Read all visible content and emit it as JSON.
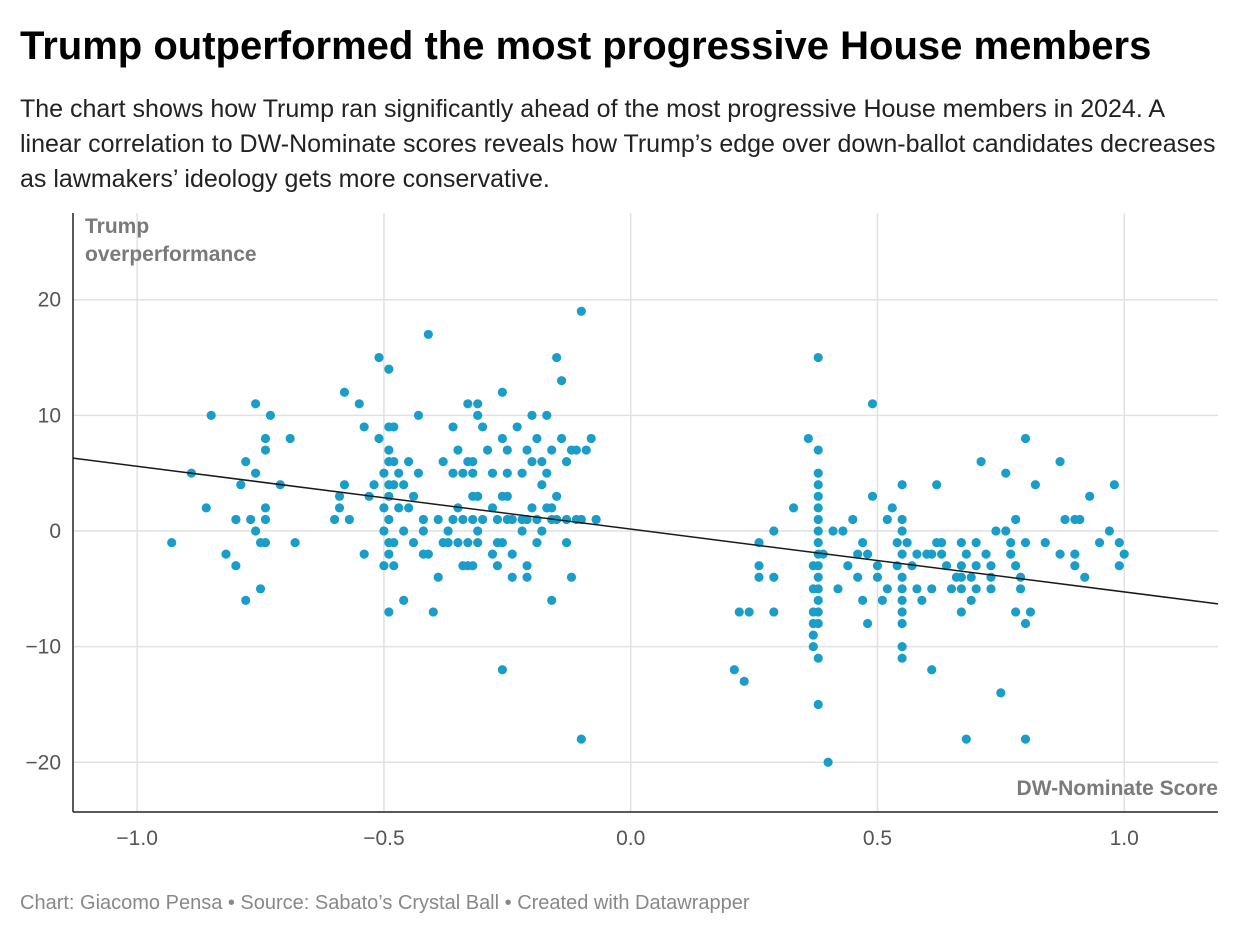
{
  "chart_data": {
    "type": "scatter",
    "title": "Trump outperformed the most progressive House members",
    "subtitle": "The chart shows how Trump ran significantly ahead of the most progressive House members in 2024. A linear correlation to DW-Nominate scores reveals how Trump’s edge over down-ballot candidates decreases as lawmakers’ ideology gets more conservative.",
    "xlabel": "DW-Nominate Score",
    "ylabel": "Trump overperformance",
    "ylabel_lines": [
      "Trump",
      "overperformance"
    ],
    "xlim": [
      -1.13,
      1.19
    ],
    "ylim": [
      -24.3,
      27.5
    ],
    "xticks": [
      {
        "value": -1.0,
        "label": "−1.0"
      },
      {
        "value": -0.5,
        "label": "−0.5"
      },
      {
        "value": 0.0,
        "label": "0.0"
      },
      {
        "value": 0.5,
        "label": "0.5"
      },
      {
        "value": 1.0,
        "label": "1.0"
      }
    ],
    "yticks": [
      {
        "value": 20,
        "label": "20"
      },
      {
        "value": 10,
        "label": "10"
      },
      {
        "value": 0,
        "label": "0"
      },
      {
        "value": -10,
        "label": "−10"
      },
      {
        "value": -20,
        "label": "−20"
      }
    ],
    "grid": true,
    "point_color": "#1a9ec9",
    "trendline": {
      "color": "#1a1a1a",
      "x": [
        -1.13,
        1.19
      ],
      "y": [
        6.3,
        -6.3
      ]
    },
    "points": [
      [
        -0.93,
        -1
      ],
      [
        -0.89,
        5
      ],
      [
        -0.86,
        2
      ],
      [
        -0.85,
        10
      ],
      [
        -0.82,
        -2
      ],
      [
        -0.8,
        -3
      ],
      [
        -0.8,
        1
      ],
      [
        -0.79,
        4
      ],
      [
        -0.78,
        6
      ],
      [
        -0.78,
        -6
      ],
      [
        -0.77,
        1
      ],
      [
        -0.76,
        0
      ],
      [
        -0.76,
        5
      ],
      [
        -0.76,
        11
      ],
      [
        -0.75,
        -5
      ],
      [
        -0.75,
        -1
      ],
      [
        -0.74,
        1
      ],
      [
        -0.74,
        2
      ],
      [
        -0.74,
        7
      ],
      [
        -0.74,
        8
      ],
      [
        -0.74,
        -1
      ],
      [
        -0.73,
        10
      ],
      [
        -0.71,
        4
      ],
      [
        -0.69,
        8
      ],
      [
        -0.68,
        -1
      ],
      [
        -0.6,
        1
      ],
      [
        -0.59,
        2
      ],
      [
        -0.59,
        3
      ],
      [
        -0.58,
        12
      ],
      [
        -0.58,
        4
      ],
      [
        -0.57,
        1
      ],
      [
        -0.55,
        11
      ],
      [
        -0.54,
        9
      ],
      [
        -0.54,
        -2
      ],
      [
        -0.53,
        3
      ],
      [
        -0.52,
        4
      ],
      [
        -0.51,
        8
      ],
      [
        -0.51,
        15
      ],
      [
        -0.5,
        5
      ],
      [
        -0.5,
        2
      ],
      [
        -0.5,
        0
      ],
      [
        -0.5,
        -3
      ],
      [
        -0.49,
        9
      ],
      [
        -0.49,
        7
      ],
      [
        -0.49,
        6
      ],
      [
        -0.49,
        4
      ],
      [
        -0.49,
        3
      ],
      [
        -0.49,
        1
      ],
      [
        -0.49,
        -1
      ],
      [
        -0.49,
        -2
      ],
      [
        -0.49,
        -7
      ],
      [
        -0.49,
        14
      ],
      [
        -0.48,
        9
      ],
      [
        -0.48,
        6
      ],
      [
        -0.48,
        4
      ],
      [
        -0.48,
        -1
      ],
      [
        -0.48,
        -3
      ],
      [
        -0.47,
        5
      ],
      [
        -0.47,
        2
      ],
      [
        -0.46,
        -6
      ],
      [
        -0.46,
        4
      ],
      [
        -0.46,
        0
      ],
      [
        -0.45,
        2
      ],
      [
        -0.45,
        6
      ],
      [
        -0.44,
        3
      ],
      [
        -0.44,
        -1
      ],
      [
        -0.43,
        10
      ],
      [
        -0.43,
        5
      ],
      [
        -0.42,
        -2
      ],
      [
        -0.42,
        0
      ],
      [
        -0.42,
        1
      ],
      [
        -0.41,
        17
      ],
      [
        -0.41,
        -2
      ],
      [
        -0.4,
        -7
      ],
      [
        -0.39,
        -4
      ],
      [
        -0.39,
        1
      ],
      [
        -0.38,
        6
      ],
      [
        -0.38,
        -1
      ],
      [
        -0.37,
        0
      ],
      [
        -0.37,
        -1
      ],
      [
        -0.36,
        9
      ],
      [
        -0.36,
        5
      ],
      [
        -0.36,
        1
      ],
      [
        -0.35,
        -1
      ],
      [
        -0.35,
        2
      ],
      [
        -0.35,
        7
      ],
      [
        -0.34,
        5
      ],
      [
        -0.34,
        1
      ],
      [
        -0.34,
        -3
      ],
      [
        -0.33,
        11
      ],
      [
        -0.33,
        6
      ],
      [
        -0.33,
        -1
      ],
      [
        -0.33,
        -3
      ],
      [
        -0.32,
        1
      ],
      [
        -0.32,
        5
      ],
      [
        -0.32,
        6
      ],
      [
        -0.32,
        3
      ],
      [
        -0.32,
        -3
      ],
      [
        -0.31,
        10
      ],
      [
        -0.31,
        11
      ],
      [
        -0.31,
        3
      ],
      [
        -0.31,
        0
      ],
      [
        -0.31,
        -1
      ],
      [
        -0.3,
        9
      ],
      [
        -0.3,
        1
      ],
      [
        -0.29,
        7
      ],
      [
        -0.28,
        2
      ],
      [
        -0.28,
        -2
      ],
      [
        -0.28,
        5
      ],
      [
        -0.27,
        -1
      ],
      [
        -0.27,
        -3
      ],
      [
        -0.27,
        1
      ],
      [
        -0.26,
        12
      ],
      [
        -0.26,
        8
      ],
      [
        -0.26,
        3
      ],
      [
        -0.26,
        -1
      ],
      [
        -0.26,
        -12
      ],
      [
        -0.25,
        7
      ],
      [
        -0.25,
        1
      ],
      [
        -0.25,
        5
      ],
      [
        -0.25,
        3
      ],
      [
        -0.24,
        -4
      ],
      [
        -0.24,
        1
      ],
      [
        -0.24,
        -2
      ],
      [
        -0.23,
        9
      ],
      [
        -0.22,
        1
      ],
      [
        -0.22,
        0
      ],
      [
        -0.22,
        5
      ],
      [
        -0.21,
        -3
      ],
      [
        -0.21,
        -4
      ],
      [
        -0.21,
        7
      ],
      [
        -0.21,
        1
      ],
      [
        -0.2,
        10
      ],
      [
        -0.2,
        6
      ],
      [
        -0.2,
        2
      ],
      [
        -0.19,
        8
      ],
      [
        -0.19,
        1
      ],
      [
        -0.19,
        -1
      ],
      [
        -0.18,
        4
      ],
      [
        -0.18,
        6
      ],
      [
        -0.18,
        0
      ],
      [
        -0.17,
        10
      ],
      [
        -0.17,
        2
      ],
      [
        -0.17,
        5
      ],
      [
        -0.16,
        -6
      ],
      [
        -0.16,
        1
      ],
      [
        -0.16,
        2
      ],
      [
        -0.16,
        7
      ],
      [
        -0.15,
        3
      ],
      [
        -0.15,
        1
      ],
      [
        -0.15,
        15
      ],
      [
        -0.14,
        13
      ],
      [
        -0.14,
        8
      ],
      [
        -0.13,
        6
      ],
      [
        -0.13,
        1
      ],
      [
        -0.13,
        -1
      ],
      [
        -0.12,
        -4
      ],
      [
        -0.12,
        7
      ],
      [
        -0.11,
        7
      ],
      [
        -0.11,
        1
      ],
      [
        -0.1,
        1
      ],
      [
        -0.1,
        -18
      ],
      [
        -0.1,
        19
      ],
      [
        -0.09,
        7
      ],
      [
        -0.08,
        8
      ],
      [
        -0.07,
        1
      ],
      [
        0.21,
        -12
      ],
      [
        0.22,
        -7
      ],
      [
        0.23,
        -13
      ],
      [
        0.24,
        -7
      ],
      [
        0.26,
        -3
      ],
      [
        0.26,
        -1
      ],
      [
        0.26,
        -4
      ],
      [
        0.29,
        0
      ],
      [
        0.29,
        -4
      ],
      [
        0.29,
        -7
      ],
      [
        0.33,
        2
      ],
      [
        0.36,
        8
      ],
      [
        0.37,
        -3
      ],
      [
        0.37,
        -5
      ],
      [
        0.37,
        -7
      ],
      [
        0.37,
        -8
      ],
      [
        0.37,
        -9
      ],
      [
        0.37,
        -10
      ],
      [
        0.38,
        7
      ],
      [
        0.38,
        5
      ],
      [
        0.38,
        4
      ],
      [
        0.38,
        3
      ],
      [
        0.38,
        2
      ],
      [
        0.38,
        1
      ],
      [
        0.38,
        0
      ],
      [
        0.38,
        -1
      ],
      [
        0.38,
        -2
      ],
      [
        0.38,
        -3
      ],
      [
        0.38,
        -4
      ],
      [
        0.38,
        -5
      ],
      [
        0.38,
        -6
      ],
      [
        0.38,
        -7
      ],
      [
        0.38,
        -8
      ],
      [
        0.38,
        -11
      ],
      [
        0.38,
        -15
      ],
      [
        0.38,
        15
      ],
      [
        0.39,
        -2
      ],
      [
        0.4,
        -20
      ],
      [
        0.41,
        0
      ],
      [
        0.42,
        -5
      ],
      [
        0.43,
        0
      ],
      [
        0.44,
        -3
      ],
      [
        0.45,
        1
      ],
      [
        0.46,
        -2
      ],
      [
        0.46,
        -4
      ],
      [
        0.47,
        -1
      ],
      [
        0.47,
        -6
      ],
      [
        0.48,
        -8
      ],
      [
        0.48,
        -2
      ],
      [
        0.49,
        11
      ],
      [
        0.49,
        3
      ],
      [
        0.5,
        -3
      ],
      [
        0.5,
        -4
      ],
      [
        0.51,
        -6
      ],
      [
        0.52,
        1
      ],
      [
        0.52,
        -5
      ],
      [
        0.53,
        2
      ],
      [
        0.54,
        -1
      ],
      [
        0.54,
        -3
      ],
      [
        0.55,
        4
      ],
      [
        0.55,
        1
      ],
      [
        0.55,
        0
      ],
      [
        0.55,
        -2
      ],
      [
        0.55,
        -4
      ],
      [
        0.55,
        -5
      ],
      [
        0.55,
        -6
      ],
      [
        0.55,
        -7
      ],
      [
        0.55,
        -8
      ],
      [
        0.55,
        -10
      ],
      [
        0.55,
        -11
      ],
      [
        0.56,
        -1
      ],
      [
        0.57,
        -3
      ],
      [
        0.58,
        -2
      ],
      [
        0.58,
        -5
      ],
      [
        0.59,
        -6
      ],
      [
        0.6,
        -2
      ],
      [
        0.61,
        -2
      ],
      [
        0.61,
        -5
      ],
      [
        0.61,
        -12
      ],
      [
        0.62,
        4
      ],
      [
        0.62,
        -1
      ],
      [
        0.63,
        -1
      ],
      [
        0.63,
        -2
      ],
      [
        0.64,
        -3
      ],
      [
        0.65,
        -5
      ],
      [
        0.66,
        -4
      ],
      [
        0.67,
        -1
      ],
      [
        0.67,
        -3
      ],
      [
        0.67,
        -4
      ],
      [
        0.67,
        -5
      ],
      [
        0.67,
        -7
      ],
      [
        0.68,
        -18
      ],
      [
        0.68,
        -2
      ],
      [
        0.69,
        -4
      ],
      [
        0.69,
        -6
      ],
      [
        0.7,
        -1
      ],
      [
        0.7,
        -3
      ],
      [
        0.7,
        -5
      ],
      [
        0.71,
        6
      ],
      [
        0.72,
        -2
      ],
      [
        0.73,
        -3
      ],
      [
        0.73,
        -4
      ],
      [
        0.73,
        -5
      ],
      [
        0.74,
        0
      ],
      [
        0.75,
        -14
      ],
      [
        0.76,
        5
      ],
      [
        0.76,
        0
      ],
      [
        0.77,
        -1
      ],
      [
        0.77,
        -2
      ],
      [
        0.78,
        -7
      ],
      [
        0.78,
        -3
      ],
      [
        0.78,
        1
      ],
      [
        0.79,
        -4
      ],
      [
        0.79,
        -5
      ],
      [
        0.8,
        8
      ],
      [
        0.8,
        -1
      ],
      [
        0.8,
        -8
      ],
      [
        0.8,
        -18
      ],
      [
        0.81,
        -7
      ],
      [
        0.82,
        4
      ],
      [
        0.84,
        -1
      ],
      [
        0.87,
        6
      ],
      [
        0.87,
        -2
      ],
      [
        0.88,
        1
      ],
      [
        0.9,
        1
      ],
      [
        0.9,
        -2
      ],
      [
        0.9,
        -3
      ],
      [
        0.91,
        1
      ],
      [
        0.92,
        -4
      ],
      [
        0.93,
        3
      ],
      [
        0.95,
        -1
      ],
      [
        0.97,
        0
      ],
      [
        0.98,
        4
      ],
      [
        0.99,
        -1
      ],
      [
        0.99,
        -3
      ],
      [
        1.0,
        -2
      ]
    ]
  },
  "footer": {
    "text": "Chart: Giacomo Pensa • Source: Sabato’s Crystal Ball • Created with Datawrapper"
  }
}
